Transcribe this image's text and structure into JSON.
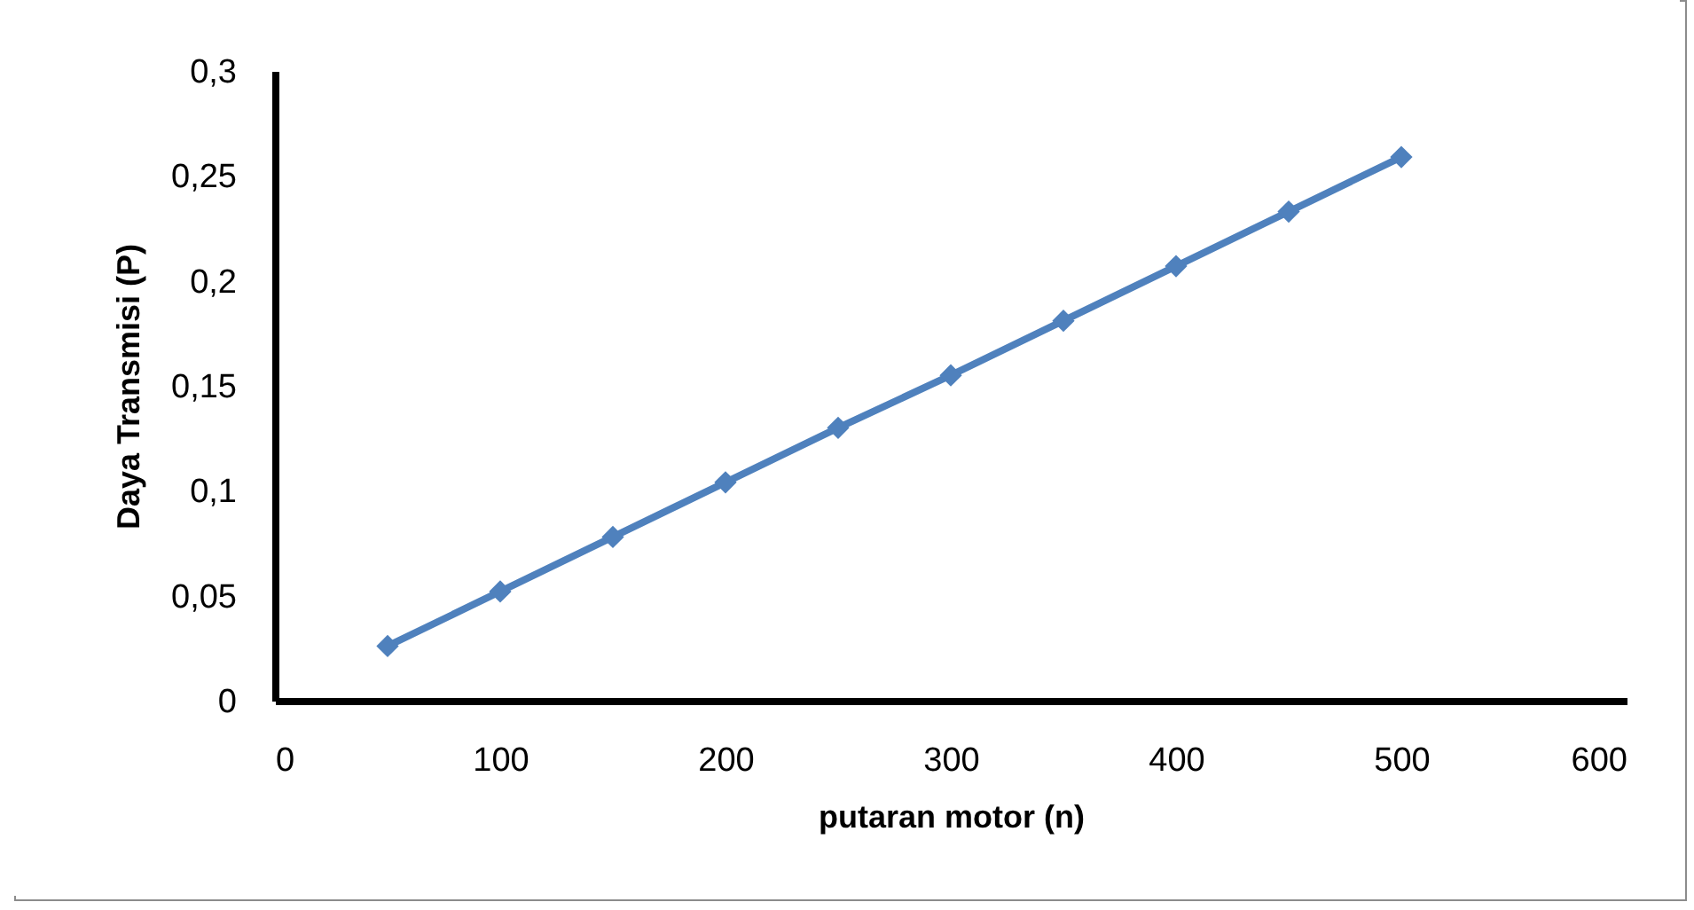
{
  "chart_data": {
    "type": "line",
    "xlabel": "putaran motor (n)",
    "ylabel": "Daya Transmisi (P)",
    "x": [
      50,
      100,
      150,
      200,
      250,
      300,
      350,
      400,
      450,
      500
    ],
    "series": [
      {
        "color": "#4f81bd",
        "values": [
          0.026,
          0.052,
          0.078,
          0.104,
          0.13,
          0.155,
          0.181,
          0.207,
          0.233,
          0.259
        ]
      }
    ],
    "xlim": [
      0,
      600
    ],
    "xticks": [
      0,
      100,
      200,
      300,
      400,
      500,
      600
    ],
    "ylim": [
      0,
      0.3
    ],
    "yticks": [
      {
        "value": 0,
        "label": "0"
      },
      {
        "value": 0.05,
        "label": "0,05"
      },
      {
        "value": 0.1,
        "label": "0,1"
      },
      {
        "value": 0.15,
        "label": "0,15"
      },
      {
        "value": 0.2,
        "label": "0,2"
      },
      {
        "value": 0.25,
        "label": "0,25"
      },
      {
        "value": 0.3,
        "label": "0,3"
      }
    ],
    "grid": false,
    "marker": "diamond",
    "line_style": "solid"
  }
}
